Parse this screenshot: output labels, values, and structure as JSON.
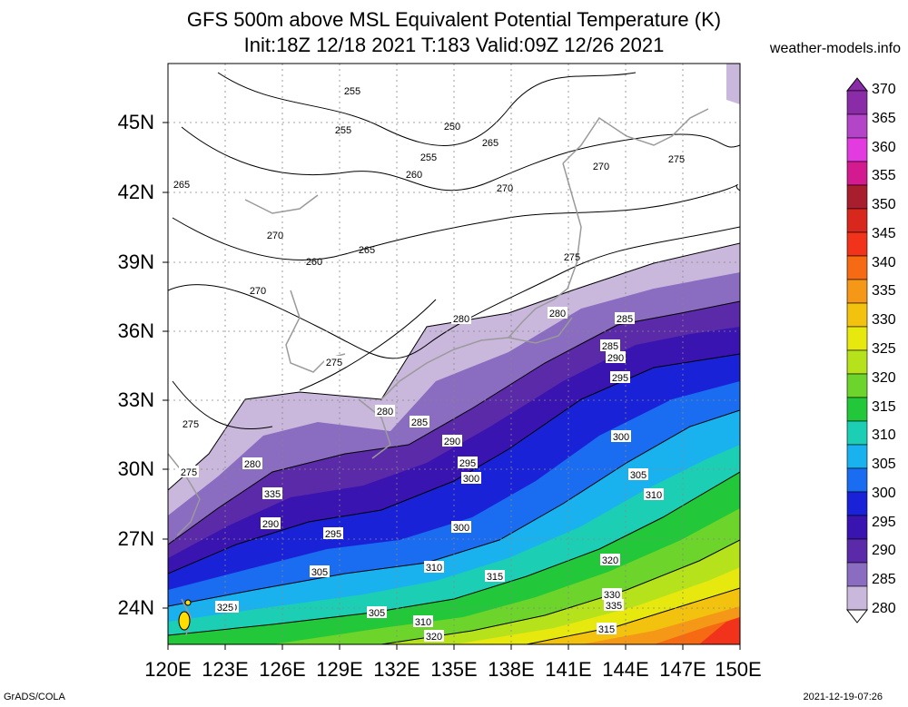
{
  "title_line1": "GFS 500m above MSL Equivalent Potential Temperature (K)",
  "title_line2": "Init:18Z 12/18 2021 T:183 Valid:09Z 12/26 2021",
  "site": "weather-models.info",
  "credit": "GrADS/COLA",
  "timestamp": "2021-12-19-07:26",
  "lat_labels": [
    "45N",
    "42N",
    "39N",
    "36N",
    "33N",
    "30N",
    "27N",
    "24N"
  ],
  "lon_labels": [
    "120E",
    "123E",
    "126E",
    "129E",
    "132E",
    "135E",
    "138E",
    "141E",
    "144E",
    "147E",
    "150E"
  ],
  "colorbar": {
    "levels": [
      "370",
      "365",
      "360",
      "355",
      "350",
      "345",
      "340",
      "335",
      "330",
      "325",
      "320",
      "315",
      "310",
      "305",
      "300",
      "295",
      "290",
      "285",
      "280"
    ],
    "colors": [
      "#8a2ba8",
      "#b545c8",
      "#e23be0",
      "#d41a8f",
      "#a81e2e",
      "#d8281e",
      "#f0331a",
      "#f56a12",
      "#f59818",
      "#f2c20e",
      "#e6e80e",
      "#b6e21c",
      "#6cd42a",
      "#22c83a",
      "#1ccfb4",
      "#19b2ef",
      "#1a6df0",
      "#1a22d8",
      "#3a14b0",
      "#5a2aa8",
      "#8a6cc0",
      "#c9b8dc"
    ]
  },
  "contour_labels": [
    "255",
    "255",
    "250",
    "255",
    "265",
    "260",
    "270",
    "265",
    "270",
    "275",
    "270",
    "260",
    "265",
    "270",
    "275",
    "275",
    "280",
    "280",
    "285",
    "275",
    "280",
    "285",
    "290",
    "295",
    "300",
    "275",
    "280",
    "285",
    "290",
    "295",
    "300",
    "305",
    "310",
    "315",
    "290",
    "295",
    "300",
    "305",
    "310",
    "315",
    "320",
    "330",
    "335",
    "300",
    "305",
    "310",
    "315",
    "320",
    "325",
    "335"
  ]
}
